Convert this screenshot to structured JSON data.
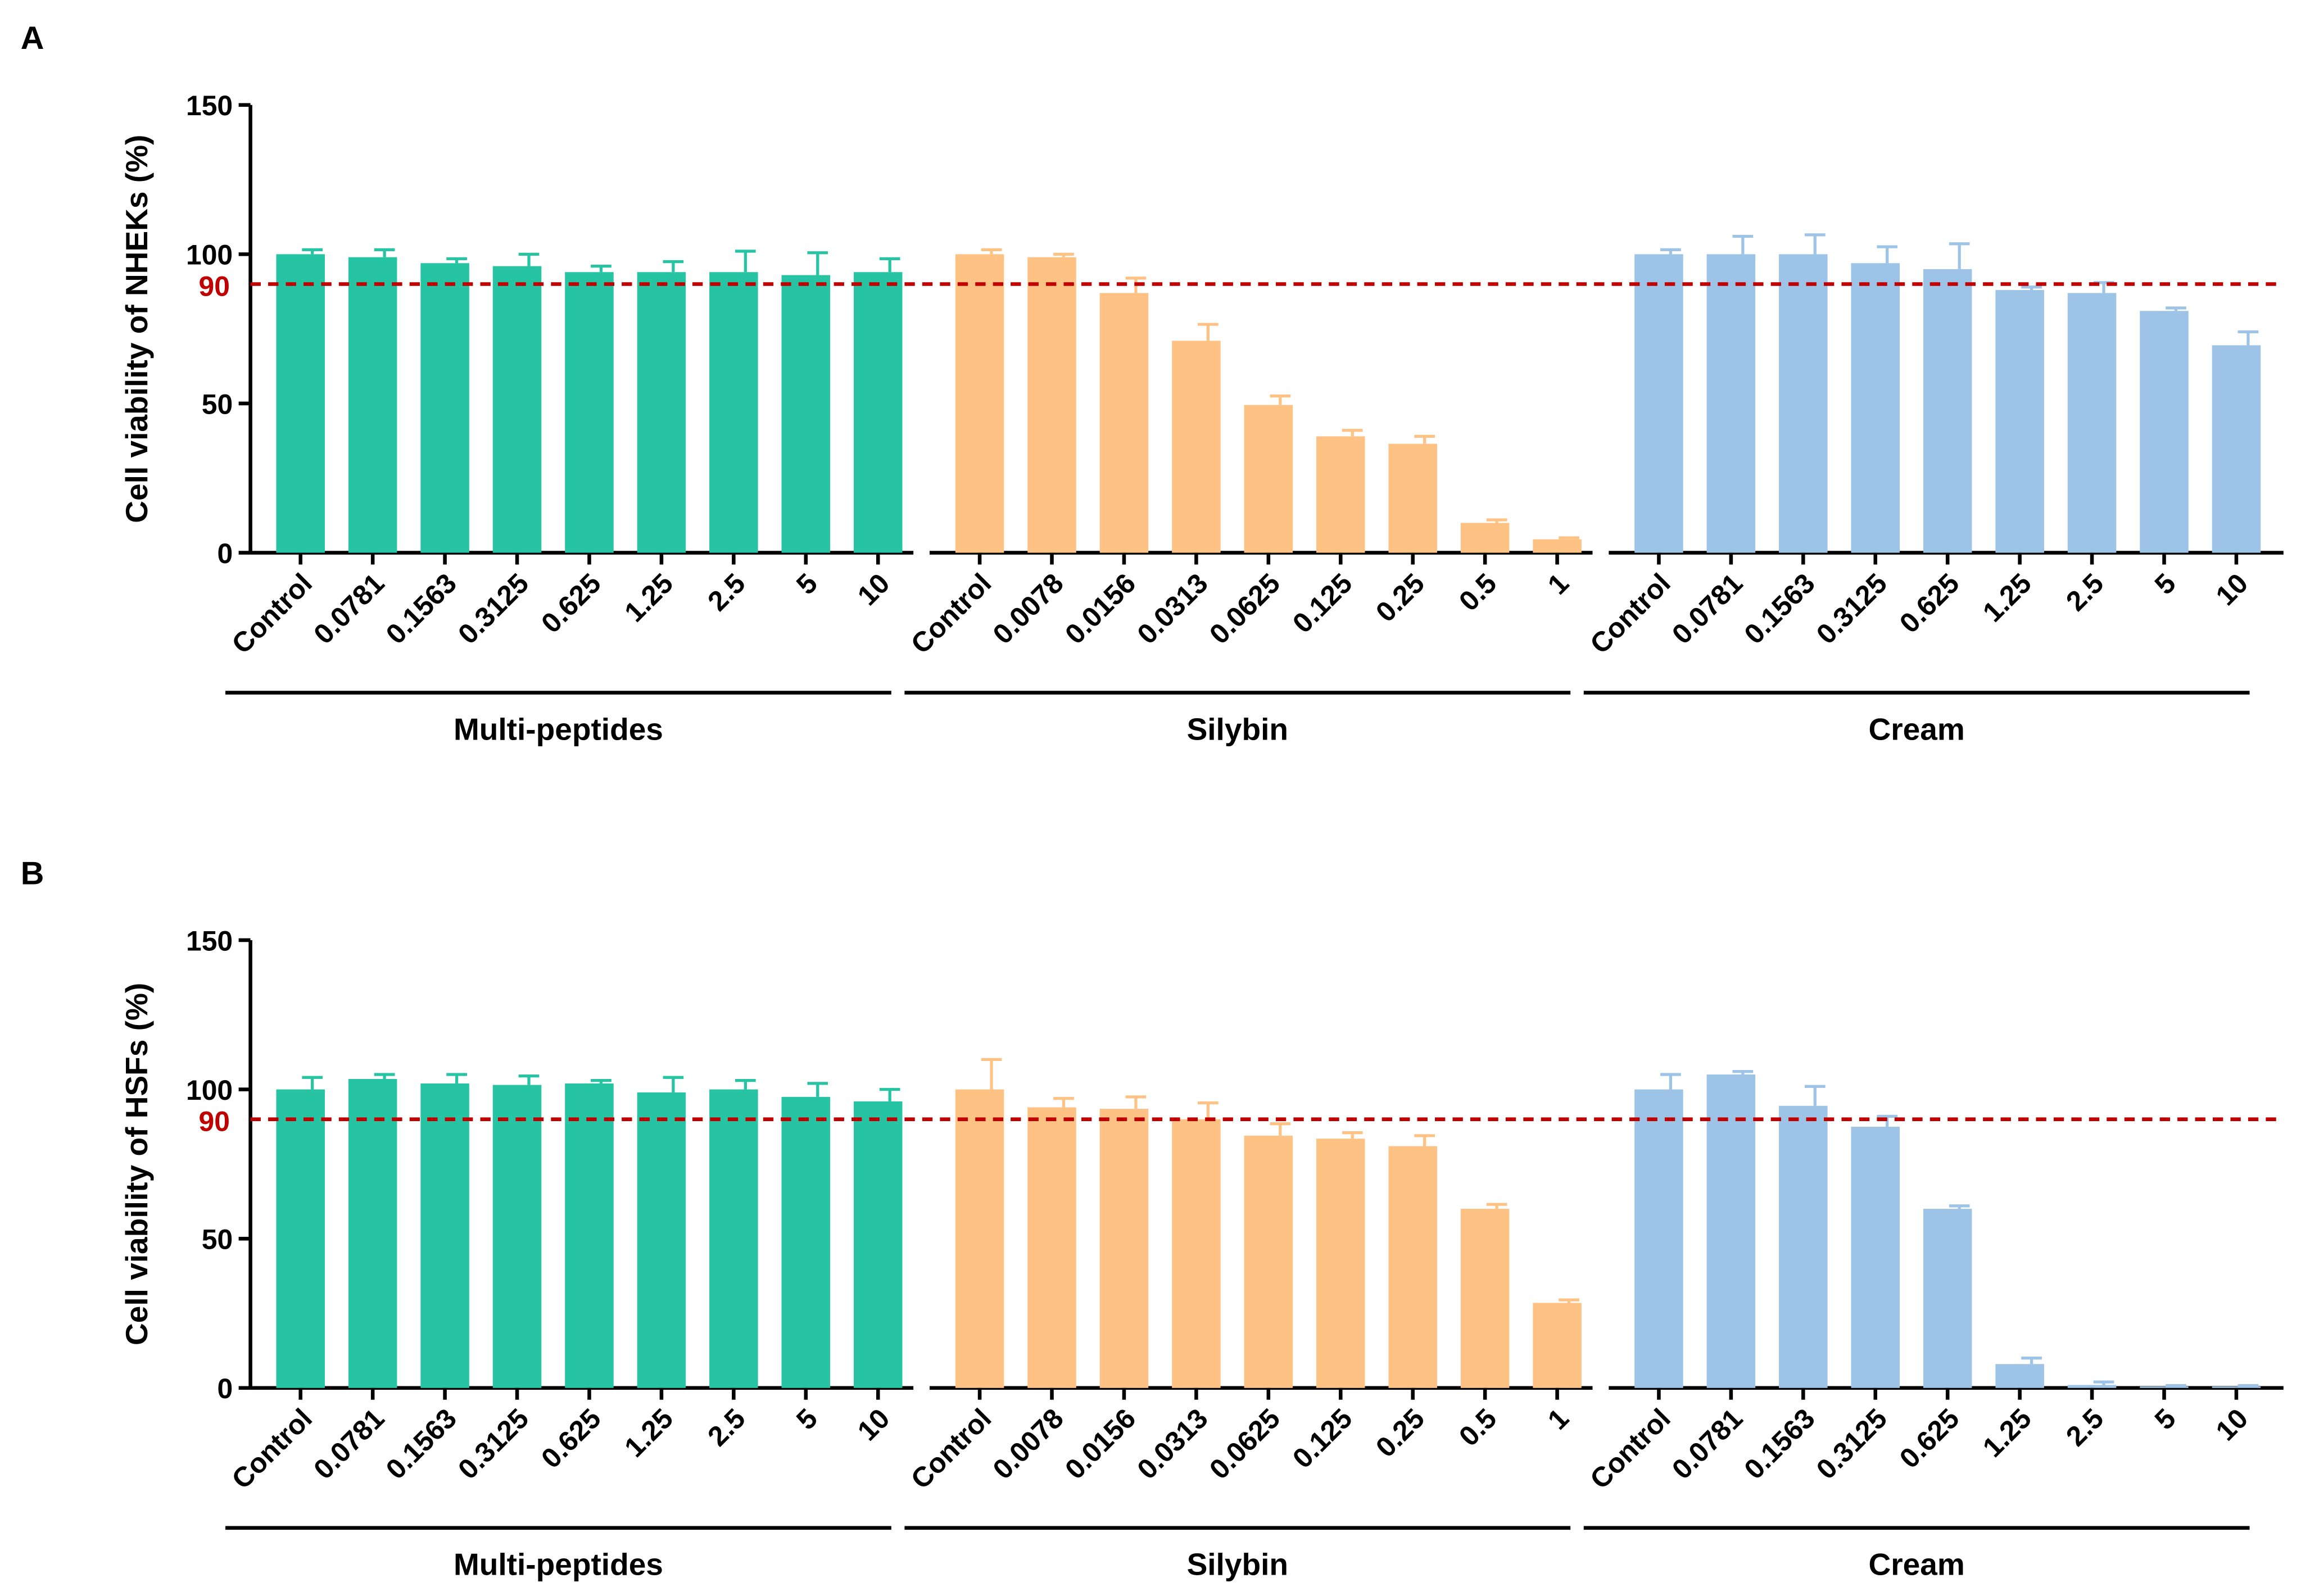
{
  "chart_data": [
    {
      "type": "bar",
      "panel": "A",
      "ylabel": "Cell viability of NHEKs (%)",
      "ylim": [
        0,
        150
      ],
      "yticks": [
        0,
        50,
        100,
        150
      ],
      "reference_line": {
        "value": 90,
        "label": "90",
        "color": "#c00000"
      },
      "groups": [
        {
          "name": "Multi-peptides",
          "color": "#26c4a3",
          "categories": [
            "Control",
            "0.0781",
            "0.1563",
            "0.3125",
            "0.625",
            "1.25",
            "2.5",
            "5",
            "10"
          ],
          "values": [
            100,
            99,
            97,
            96,
            94,
            94,
            94,
            93,
            94
          ],
          "errors": [
            1.5,
            2.5,
            1.5,
            4,
            2,
            3.5,
            7,
            7.5,
            4.5
          ]
        },
        {
          "name": "Silybin",
          "color": "#ffc285",
          "categories": [
            "Control",
            "0.0078",
            "0.0156",
            "0.0313",
            "0.0625",
            "0.125",
            "0.25",
            "0.5",
            "1"
          ],
          "values": [
            100,
            99,
            87,
            71,
            49.5,
            39,
            36.5,
            10,
            4.5
          ],
          "errors": [
            1.5,
            1,
            5,
            5.5,
            3,
            2,
            2.5,
            1,
            0.5
          ]
        },
        {
          "name": "Cream",
          "color": "#9dc3e6",
          "categories": [
            "Control",
            "0.0781",
            "0.1563",
            "0.3125",
            "0.625",
            "1.25",
            "2.5",
            "5",
            "10"
          ],
          "values": [
            100,
            100,
            100,
            97,
            95,
            88,
            87,
            81,
            69.5
          ],
          "errors": [
            1.5,
            6,
            6.5,
            5.5,
            8.5,
            1,
            3.5,
            1,
            4.5
          ]
        }
      ]
    },
    {
      "type": "bar",
      "panel": "B",
      "ylabel": "Cell viability of HSFs (%)",
      "ylim": [
        0,
        150
      ],
      "yticks": [
        0,
        50,
        100,
        150
      ],
      "reference_line": {
        "value": 90,
        "label": "90",
        "color": "#c00000"
      },
      "groups": [
        {
          "name": "Multi-peptides",
          "color": "#26c4a3",
          "categories": [
            "Control",
            "0.0781",
            "0.1563",
            "0.3125",
            "0.625",
            "1.25",
            "2.5",
            "5",
            "10"
          ],
          "values": [
            100,
            103.5,
            102,
            101.5,
            102,
            99,
            100,
            97.5,
            96
          ],
          "errors": [
            4,
            1.5,
            3,
            3,
            1,
            5,
            3,
            4.5,
            4
          ]
        },
        {
          "name": "Silybin",
          "color": "#ffc285",
          "categories": [
            "Control",
            "0.0078",
            "0.0156",
            "0.0313",
            "0.0625",
            "0.125",
            "0.25",
            "0.5",
            "1"
          ],
          "values": [
            100,
            94,
            93.5,
            90,
            84.5,
            83.5,
            81,
            60,
            28.5
          ],
          "errors": [
            10,
            3,
            4,
            5.5,
            4,
            2,
            3.5,
            1.5,
            1
          ]
        },
        {
          "name": "Cream",
          "color": "#9dc3e6",
          "categories": [
            "Control",
            "0.0781",
            "0.1563",
            "0.3125",
            "0.625",
            "1.25",
            "2.5",
            "5",
            "10"
          ],
          "values": [
            100,
            105,
            94.5,
            87.5,
            60,
            8,
            1,
            0.5,
            0.5
          ],
          "errors": [
            5,
            1,
            6.5,
            3.5,
            1,
            2,
            1,
            0.3,
            0.3
          ]
        }
      ]
    }
  ]
}
